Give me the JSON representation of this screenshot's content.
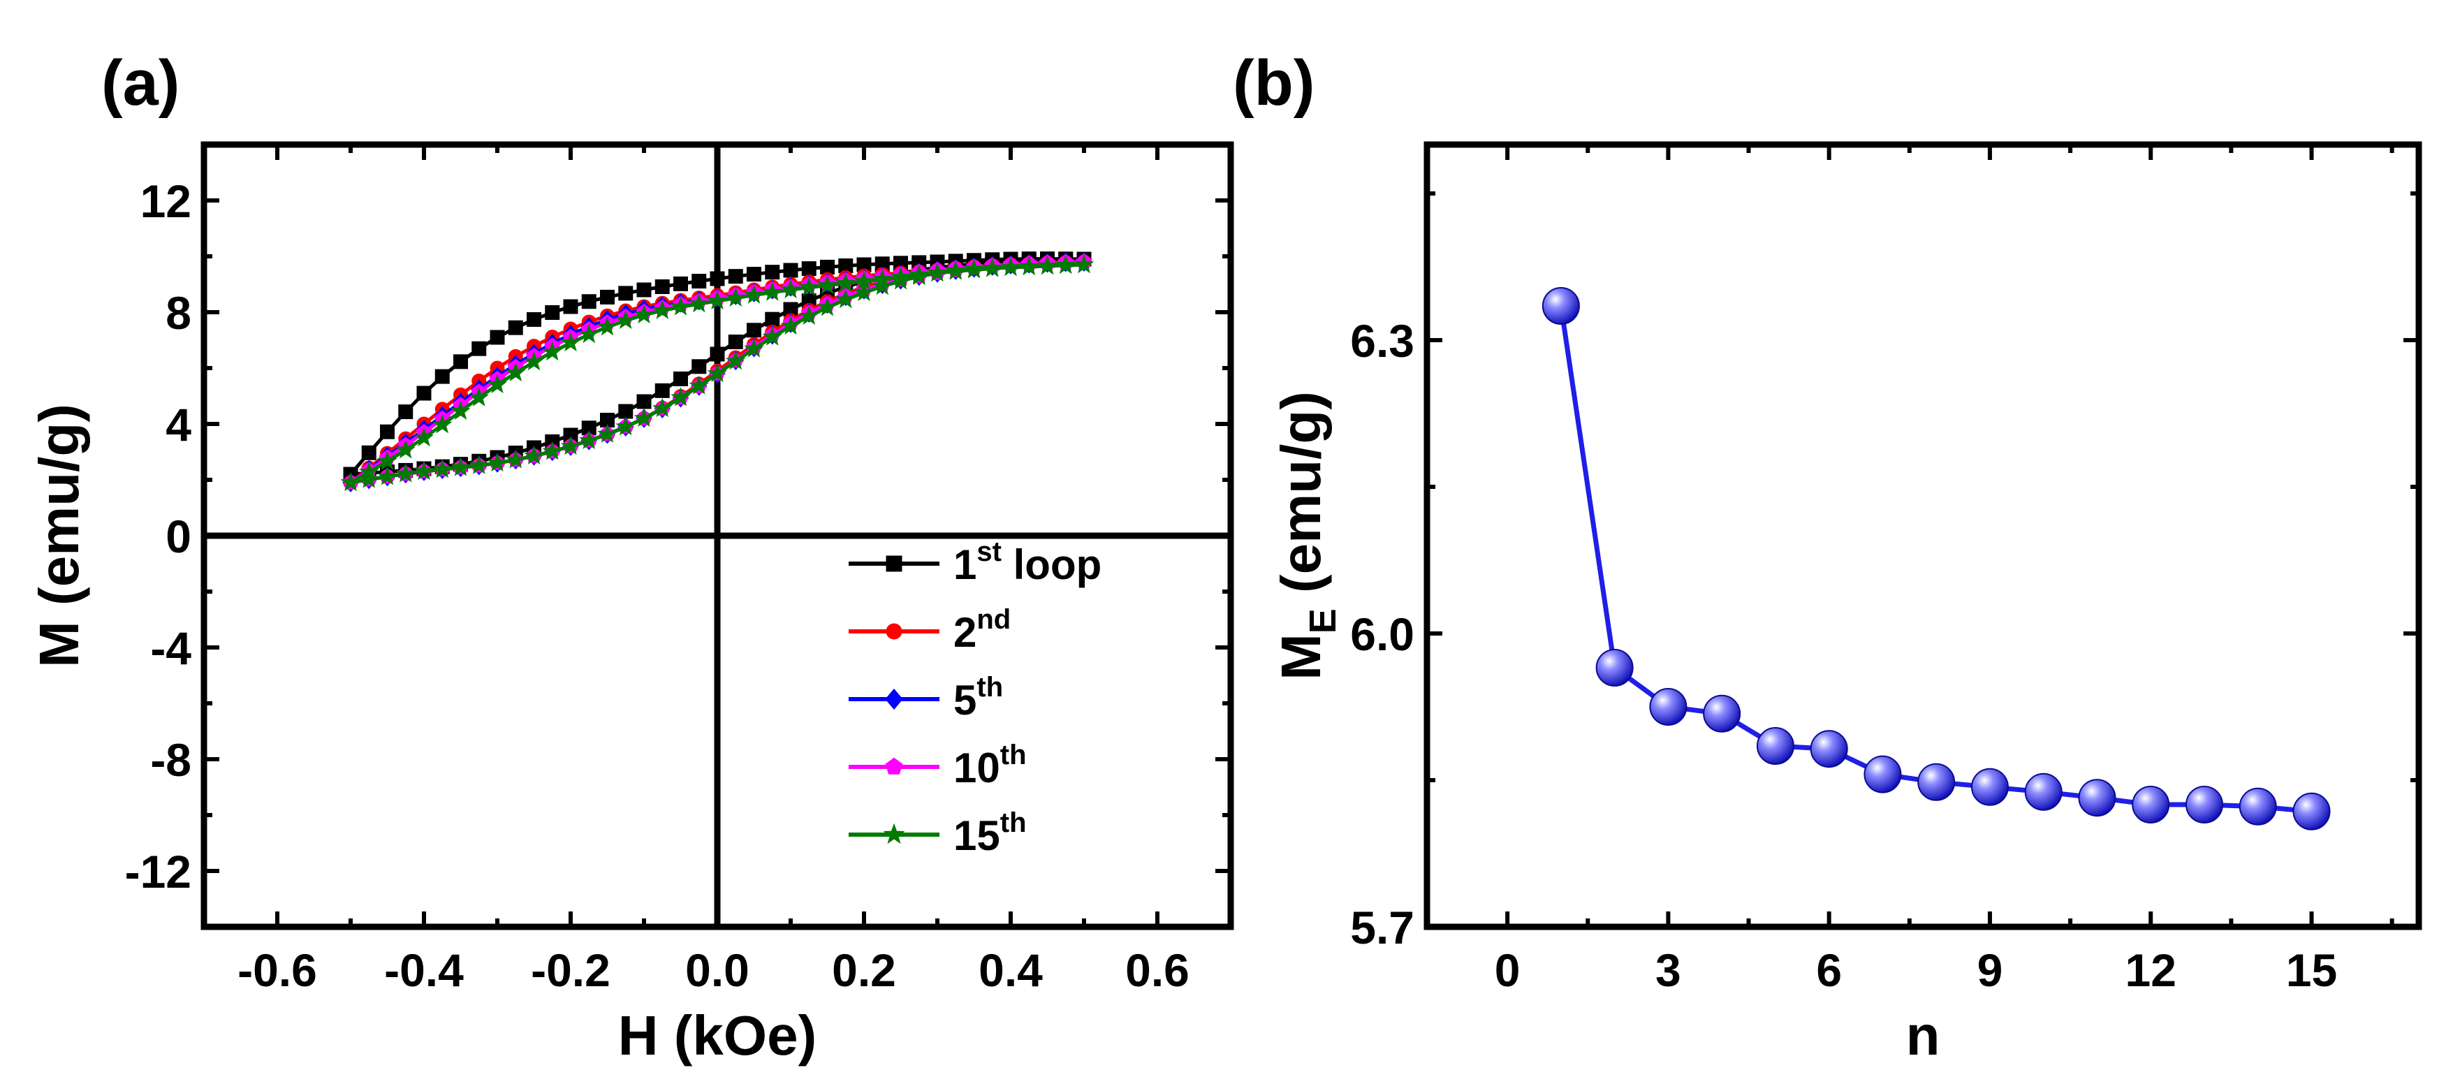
{
  "chart_data": [
    {
      "type": "line",
      "panel_label": "(a)",
      "xlabel": "H (kOe)",
      "ylabel": "M (emu/g)",
      "xlim": [
        -0.7,
        0.7
      ],
      "ylim": [
        -14,
        14
      ],
      "xticks": [
        {
          "v": -0.6,
          "label": "-0.6"
        },
        {
          "v": -0.4,
          "label": "-0.4"
        },
        {
          "v": -0.2,
          "label": "-0.2"
        },
        {
          "v": 0.0,
          "label": "0.0"
        },
        {
          "v": 0.2,
          "label": "0.2"
        },
        {
          "v": 0.4,
          "label": "0.4"
        },
        {
          "v": 0.6,
          "label": "0.6"
        }
      ],
      "yticks": [
        {
          "v": -12,
          "label": "-12"
        },
        {
          "v": -8,
          "label": "-8"
        },
        {
          "v": -4,
          "label": "-4"
        },
        {
          "v": 0,
          "label": "0"
        },
        {
          "v": 4,
          "label": "4"
        },
        {
          "v": 8,
          "label": "8"
        },
        {
          "v": 12,
          "label": "12"
        }
      ],
      "legend_position": "bottom-right",
      "series": [
        {
          "name": "1st loop",
          "legend_base": "1",
          "legend_sup": "st",
          "legend_tail": " loop",
          "color": "#000000",
          "marker": "square",
          "M_ascending": [
            2.2,
            2.4,
            2.8,
            3.6,
            4.8,
            6.5,
            8.1,
            9.1,
            9.6,
            9.8,
            9.9
          ],
          "M_descending": [
            2.2,
            5.1,
            7.1,
            8.2,
            8.8,
            9.2,
            9.5,
            9.7,
            9.8,
            9.9,
            9.9
          ]
        },
        {
          "name": "2nd",
          "legend_base": "2",
          "legend_sup": "nd",
          "legend_tail": "",
          "color": "#ff0000",
          "marker": "circle",
          "M_ascending": [
            1.9,
            2.3,
            2.6,
            3.2,
            4.2,
            5.9,
            7.7,
            8.9,
            9.5,
            9.7,
            9.8
          ],
          "M_descending": [
            1.9,
            4.0,
            6.0,
            7.4,
            8.2,
            8.6,
            9.0,
            9.3,
            9.5,
            9.7,
            9.8
          ]
        },
        {
          "name": "5th",
          "legend_base": "5",
          "legend_sup": "th",
          "legend_tail": "",
          "color": "#0000ff",
          "marker": "diamond",
          "M_ascending": [
            1.9,
            2.3,
            2.6,
            3.2,
            4.2,
            5.8,
            7.6,
            8.8,
            9.4,
            9.7,
            9.8
          ],
          "M_descending": [
            1.9,
            3.8,
            5.7,
            7.2,
            8.1,
            8.5,
            8.9,
            9.2,
            9.5,
            9.7,
            9.8
          ]
        },
        {
          "name": "10th",
          "legend_base": "10",
          "legend_sup": "th",
          "legend_tail": "",
          "color": "#ff00ff",
          "marker": "pentagon",
          "M_ascending": [
            1.9,
            2.3,
            2.6,
            3.2,
            4.2,
            5.8,
            7.6,
            8.8,
            9.4,
            9.7,
            9.8
          ],
          "M_descending": [
            1.9,
            3.7,
            5.6,
            7.1,
            8.0,
            8.5,
            8.9,
            9.2,
            9.5,
            9.7,
            9.8
          ]
        },
        {
          "name": "15th",
          "legend_base": "15",
          "legend_sup": "th",
          "legend_tail": "",
          "color": "#007a00",
          "marker": "star",
          "M_ascending": [
            1.9,
            2.3,
            2.6,
            3.2,
            4.2,
            5.8,
            7.5,
            8.7,
            9.4,
            9.6,
            9.7
          ],
          "M_descending": [
            1.9,
            3.5,
            5.4,
            6.9,
            7.9,
            8.4,
            8.8,
            9.1,
            9.4,
            9.6,
            9.7
          ]
        }
      ],
      "H_samples": [
        -0.5,
        -0.4,
        -0.3,
        -0.2,
        -0.1,
        0.0,
        0.1,
        0.2,
        0.3,
        0.4,
        0.5
      ]
    },
    {
      "type": "line",
      "panel_label": "(b)",
      "xlabel": "n",
      "ylabel": "M",
      "ylabel_sub": "E",
      "ylabel_tail": " (emu/g)",
      "xlim": [
        -1.5,
        17
      ],
      "ylim": [
        5.7,
        6.5
      ],
      "xticks": [
        {
          "v": 0,
          "label": "0"
        },
        {
          "v": 3,
          "label": "3"
        },
        {
          "v": 6,
          "label": "6"
        },
        {
          "v": 9,
          "label": "9"
        },
        {
          "v": 12,
          "label": "12"
        },
        {
          "v": 15,
          "label": "15"
        }
      ],
      "yticks": [
        {
          "v": 5.7,
          "label": "5.7"
        },
        {
          "v": 6.0,
          "label": "6.0"
        },
        {
          "v": 6.3,
          "label": "6.3"
        }
      ],
      "color": "#1f1fe6",
      "x": [
        1,
        2,
        3,
        4,
        5,
        6,
        7,
        8,
        9,
        10,
        11,
        12,
        13,
        14,
        15
      ],
      "values": [
        6.335,
        5.965,
        5.925,
        5.918,
        5.885,
        5.882,
        5.856,
        5.848,
        5.843,
        5.838,
        5.832,
        5.825,
        5.825,
        5.823,
        5.818
      ]
    }
  ]
}
